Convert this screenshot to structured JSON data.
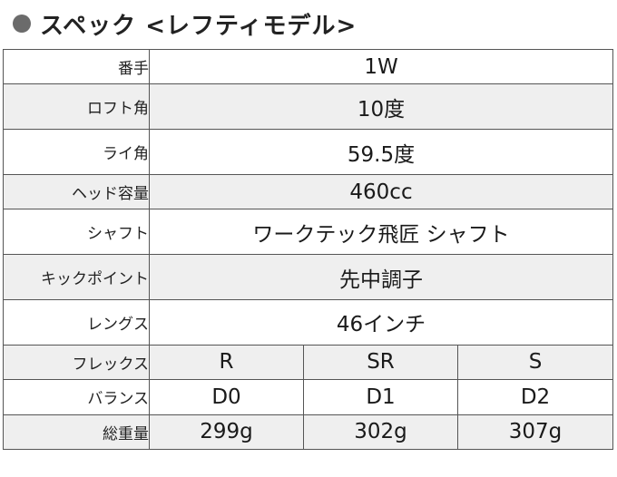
{
  "heading": "スペック <レフティモデル>",
  "rows": [
    {
      "label": "番手",
      "value": "1W"
    },
    {
      "label": "ロフト角",
      "value": "10度"
    },
    {
      "label": "ライ角",
      "value": "59.5度"
    },
    {
      "label": "ヘッド容量",
      "value": "460cc"
    },
    {
      "label": "シャフト",
      "value": "ワークテック飛匠 シャフト"
    },
    {
      "label": "キックポイント",
      "value": "先中調子"
    },
    {
      "label": "レングス",
      "value": "46インチ"
    },
    {
      "label": "フレックス",
      "values": [
        "R",
        "SR",
        "S"
      ]
    },
    {
      "label": "バランス",
      "values": [
        "D0",
        "D1",
        "D2"
      ]
    },
    {
      "label": "総重量",
      "values": [
        "299g",
        "302g",
        "307g"
      ]
    }
  ]
}
